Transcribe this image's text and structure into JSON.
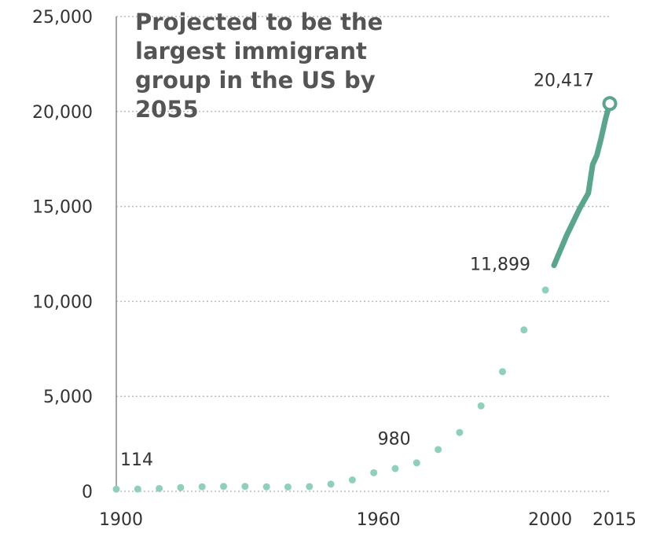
{
  "chart_data": {
    "type": "line",
    "title": "",
    "xlabel": "",
    "ylabel": "",
    "xlim": [
      1900,
      2015
    ],
    "ylim": [
      0,
      25000
    ],
    "grid": true,
    "yticks": [
      {
        "value": 0,
        "label": "0"
      },
      {
        "value": 5000,
        "label": "5,000"
      },
      {
        "value": 10000,
        "label": "10,000"
      },
      {
        "value": 15000,
        "label": "15,000"
      },
      {
        "value": 20000,
        "label": "20,000"
      },
      {
        "value": 25000,
        "label": "25,000"
      }
    ],
    "xticks": [
      {
        "value": 1900,
        "label": "1900"
      },
      {
        "value": 1960,
        "label": "1960"
      },
      {
        "value": 2000,
        "label": "2000"
      },
      {
        "value": 2015,
        "label": "2015"
      }
    ],
    "annotation": "Projected to be the largest immigrant group in the US by 2055",
    "colors": {
      "line": "#5aa68c",
      "dotted": "#8fd0bc",
      "grid": "#bbbbbb",
      "axis": "#888888"
    },
    "series": [
      {
        "style": "dotted",
        "points": [
          [
            1900,
            114
          ],
          [
            1905,
            120
          ],
          [
            1910,
            150
          ],
          [
            1915,
            200
          ],
          [
            1920,
            240
          ],
          [
            1925,
            260
          ],
          [
            1930,
            260
          ],
          [
            1935,
            240
          ],
          [
            1940,
            230
          ],
          [
            1945,
            250
          ],
          [
            1950,
            380
          ],
          [
            1955,
            600
          ],
          [
            1960,
            980
          ],
          [
            1965,
            1200
          ],
          [
            1970,
            1500
          ],
          [
            1975,
            2200
          ],
          [
            1980,
            3100
          ],
          [
            1985,
            4500
          ],
          [
            1990,
            6300
          ],
          [
            1995,
            8500
          ],
          [
            2000,
            10600
          ],
          [
            2002,
            11899
          ]
        ]
      },
      {
        "style": "solid",
        "points": [
          [
            2002,
            11899
          ],
          [
            2005,
            13500
          ],
          [
            2008,
            14900
          ],
          [
            2010,
            15700
          ],
          [
            2011,
            17200
          ],
          [
            2012,
            17700
          ],
          [
            2013,
            18600
          ],
          [
            2014,
            19600
          ],
          [
            2015,
            20417
          ]
        ]
      }
    ],
    "labels": [
      {
        "x": 1900,
        "y": 114,
        "text": "114"
      },
      {
        "x": 1960,
        "y": 980,
        "text": "980"
      },
      {
        "x": 2002,
        "y": 11899,
        "text": "11,899"
      },
      {
        "x": 2015,
        "y": 20417,
        "text": "20,417"
      }
    ]
  }
}
